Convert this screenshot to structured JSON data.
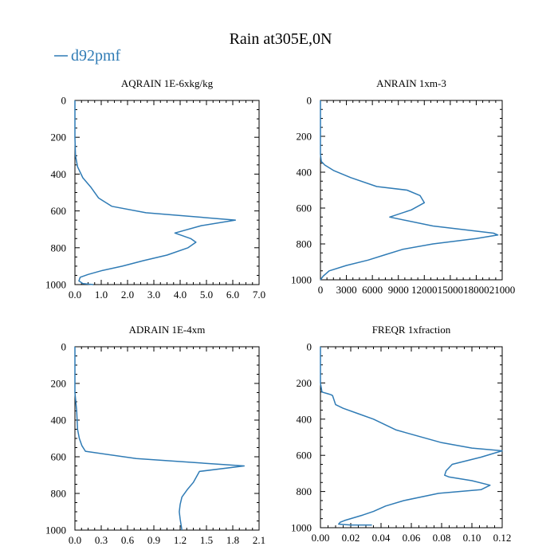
{
  "figure": {
    "title": "Rain at305E,0N",
    "legend": {
      "label": "d92pmf",
      "color": "#2f7bb5",
      "placement": "top-left"
    }
  },
  "chart_data": [
    {
      "type": "line",
      "title": "AQRAIN  1E-6xkg/kg",
      "xlim": [
        0,
        7
      ],
      "xticks": [
        "0.0",
        "1.0",
        "2.0",
        "3.0",
        "4.0",
        "5.0",
        "6.0",
        "7.0"
      ],
      "xtick_values": [
        0,
        1,
        2,
        3,
        4,
        5,
        6,
        7
      ],
      "ylim": [
        0,
        1000
      ],
      "yticks": [
        "0",
        "200",
        "400",
        "600",
        "800",
        "1000"
      ],
      "ytick_values": [
        0,
        200,
        400,
        600,
        800,
        1000
      ],
      "y_inverted": true,
      "series": [
        {
          "name": "d92pmf",
          "x": [
            0,
            0,
            0.02,
            0.1,
            0.3,
            0.6,
            0.9,
            1.4,
            2.7,
            6.1,
            4.8,
            3.8,
            4.4,
            4.6,
            4.3,
            3.5,
            2.6,
            1.8,
            1.0,
            0.5,
            0.2,
            0.15,
            0.3,
            0.7
          ],
          "y": [
            0,
            200,
            300,
            360,
            420,
            470,
            530,
            575,
            610,
            650,
            680,
            720,
            750,
            770,
            800,
            840,
            870,
            900,
            925,
            945,
            960,
            980,
            995,
            1000
          ]
        }
      ]
    },
    {
      "type": "line",
      "title": "ANRAIN  1xm-3",
      "xlim": [
        0,
        21000
      ],
      "xticks": [
        "0",
        "3000",
        "6000",
        "9000",
        "12000",
        "15000",
        "18000",
        "21000"
      ],
      "xtick_values": [
        0,
        3000,
        6000,
        9000,
        12000,
        15000,
        18000,
        21000
      ],
      "ylim": [
        0,
        1000
      ],
      "yticks": [
        "0",
        "200",
        "400",
        "600",
        "800",
        "1000"
      ],
      "ytick_values": [
        0,
        200,
        400,
        600,
        800,
        1000
      ],
      "y_inverted": true,
      "series": [
        {
          "name": "d92pmf",
          "x": [
            0,
            0,
            100,
            500,
            1500,
            3500,
            6500,
            10000,
            11500,
            12000,
            10500,
            8000,
            13000,
            20000,
            20500,
            18000,
            13000,
            9500,
            7500,
            5500,
            3000,
            1000,
            300,
            0
          ],
          "y": [
            0,
            300,
            340,
            360,
            390,
            430,
            480,
            500,
            530,
            570,
            610,
            650,
            700,
            740,
            750,
            770,
            800,
            830,
            860,
            890,
            920,
            950,
            980,
            1000
          ]
        }
      ]
    },
    {
      "type": "line",
      "title": "ADRAIN  1E-4xm",
      "xlim": [
        0,
        2.1
      ],
      "xticks": [
        "0.0",
        "0.3",
        "0.6",
        "0.9",
        "1.2",
        "1.5",
        "1.8",
        "2.1"
      ],
      "xtick_values": [
        0,
        0.3,
        0.6,
        0.9,
        1.2,
        1.5,
        1.8,
        2.1
      ],
      "ylim": [
        0,
        1000
      ],
      "yticks": [
        "0",
        "200",
        "400",
        "600",
        "800",
        "1000"
      ],
      "ytick_values": [
        0,
        200,
        400,
        600,
        800,
        1000
      ],
      "y_inverted": true,
      "series": [
        {
          "name": "d92pmf",
          "x": [
            0,
            0,
            0.02,
            0.03,
            0.05,
            0.08,
            0.12,
            0.7,
            1.93,
            1.42,
            1.35,
            1.28,
            1.22,
            1.2,
            1.19,
            1.2,
            1.21,
            1.22
          ],
          "y": [
            0,
            250,
            350,
            450,
            500,
            540,
            570,
            610,
            650,
            680,
            740,
            780,
            820,
            860,
            900,
            940,
            970,
            1000
          ]
        }
      ]
    },
    {
      "type": "line",
      "title": "FREQR  1xfraction",
      "xlim": [
        0,
        0.12
      ],
      "xticks": [
        "0.00",
        "0.02",
        "0.04",
        "0.06",
        "0.08",
        "0.10",
        "0.12"
      ],
      "xtick_values": [
        0,
        0.02,
        0.04,
        0.06,
        0.08,
        0.1,
        0.12
      ],
      "ylim": [
        0,
        1000
      ],
      "yticks": [
        "0",
        "200",
        "400",
        "600",
        "800",
        "1000"
      ],
      "ytick_values": [
        0,
        200,
        400,
        600,
        800,
        1000
      ],
      "y_inverted": true,
      "series": [
        {
          "name": "d92pmf",
          "x": [
            0,
            0,
            0.001,
            0.005,
            0.007,
            0.008,
            0.01,
            0.015,
            0.025,
            0.035,
            0.05,
            0.08,
            0.1,
            0.12,
            0.106,
            0.087,
            0.083,
            0.082,
            0.085,
            0.1,
            0.112,
            0.106,
            0.078,
            0.055,
            0.043,
            0.035,
            0.028,
            0.02,
            0.016,
            0.013,
            0.012,
            0.02,
            0.034
          ],
          "y": [
            0,
            200,
            250,
            260,
            265,
            270,
            320,
            340,
            370,
            400,
            460,
            530,
            560,
            575,
            610,
            650,
            685,
            710,
            720,
            740,
            765,
            790,
            810,
            850,
            880,
            910,
            930,
            950,
            960,
            970,
            980,
            985,
            985
          ]
        }
      ]
    }
  ]
}
